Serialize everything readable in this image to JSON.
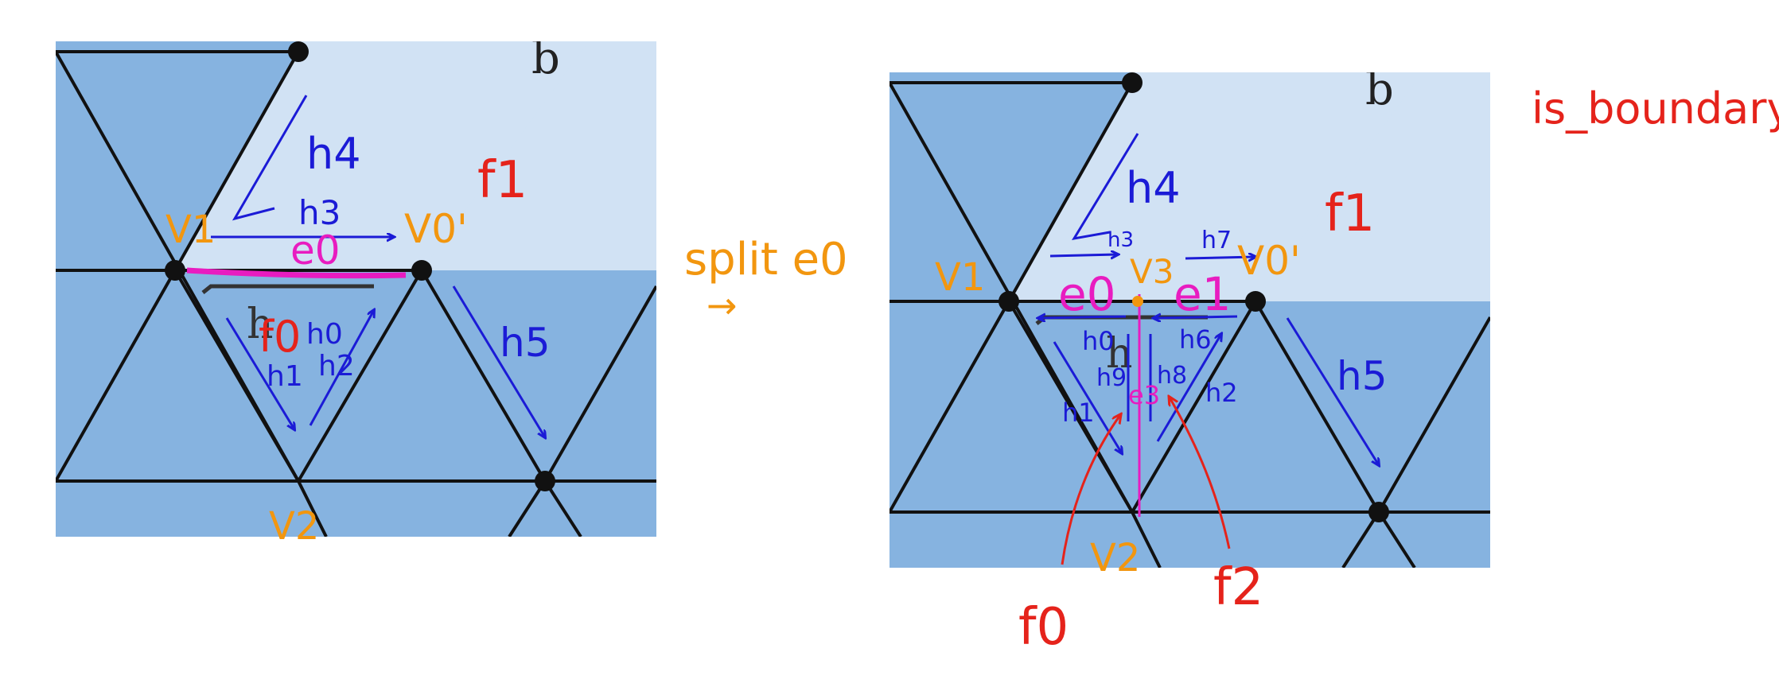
{
  "colors": {
    "boundary_fill": "#d1e2f4",
    "face_fill": "#86b3e0",
    "mesh_edge": "#111111",
    "halfedge": "#1b1bd6",
    "edge_label": "#e81cc0",
    "vertex_label": "#f2960f",
    "face_label": "#e5231b"
  },
  "before": {
    "boundary_label": "b",
    "vertex_labels": [
      "V1",
      "V0'",
      "V2"
    ],
    "edge_labels": [
      "e0"
    ],
    "halfedge_labels": [
      "h4",
      "h3",
      "h0",
      "h1",
      "h2",
      "h5"
    ],
    "printed_halfedge": "h",
    "face_labels": [
      "f1",
      "f0"
    ]
  },
  "operation": {
    "label": "split e0",
    "arrow": "→"
  },
  "after": {
    "boundary_label": "b",
    "vertex_labels": [
      "V1",
      "V3",
      "V0'",
      "V2"
    ],
    "edge_labels": [
      "e0",
      "e1",
      "e3"
    ],
    "halfedge_labels": [
      "h4",
      "h3",
      "h7",
      "h0",
      "h9",
      "h8",
      "h6",
      "h1",
      "h2",
      "h5"
    ],
    "printed_halfedge": "h",
    "face_labels": [
      "f1",
      "f0",
      "f2"
    ]
  },
  "note": "is_boundary"
}
